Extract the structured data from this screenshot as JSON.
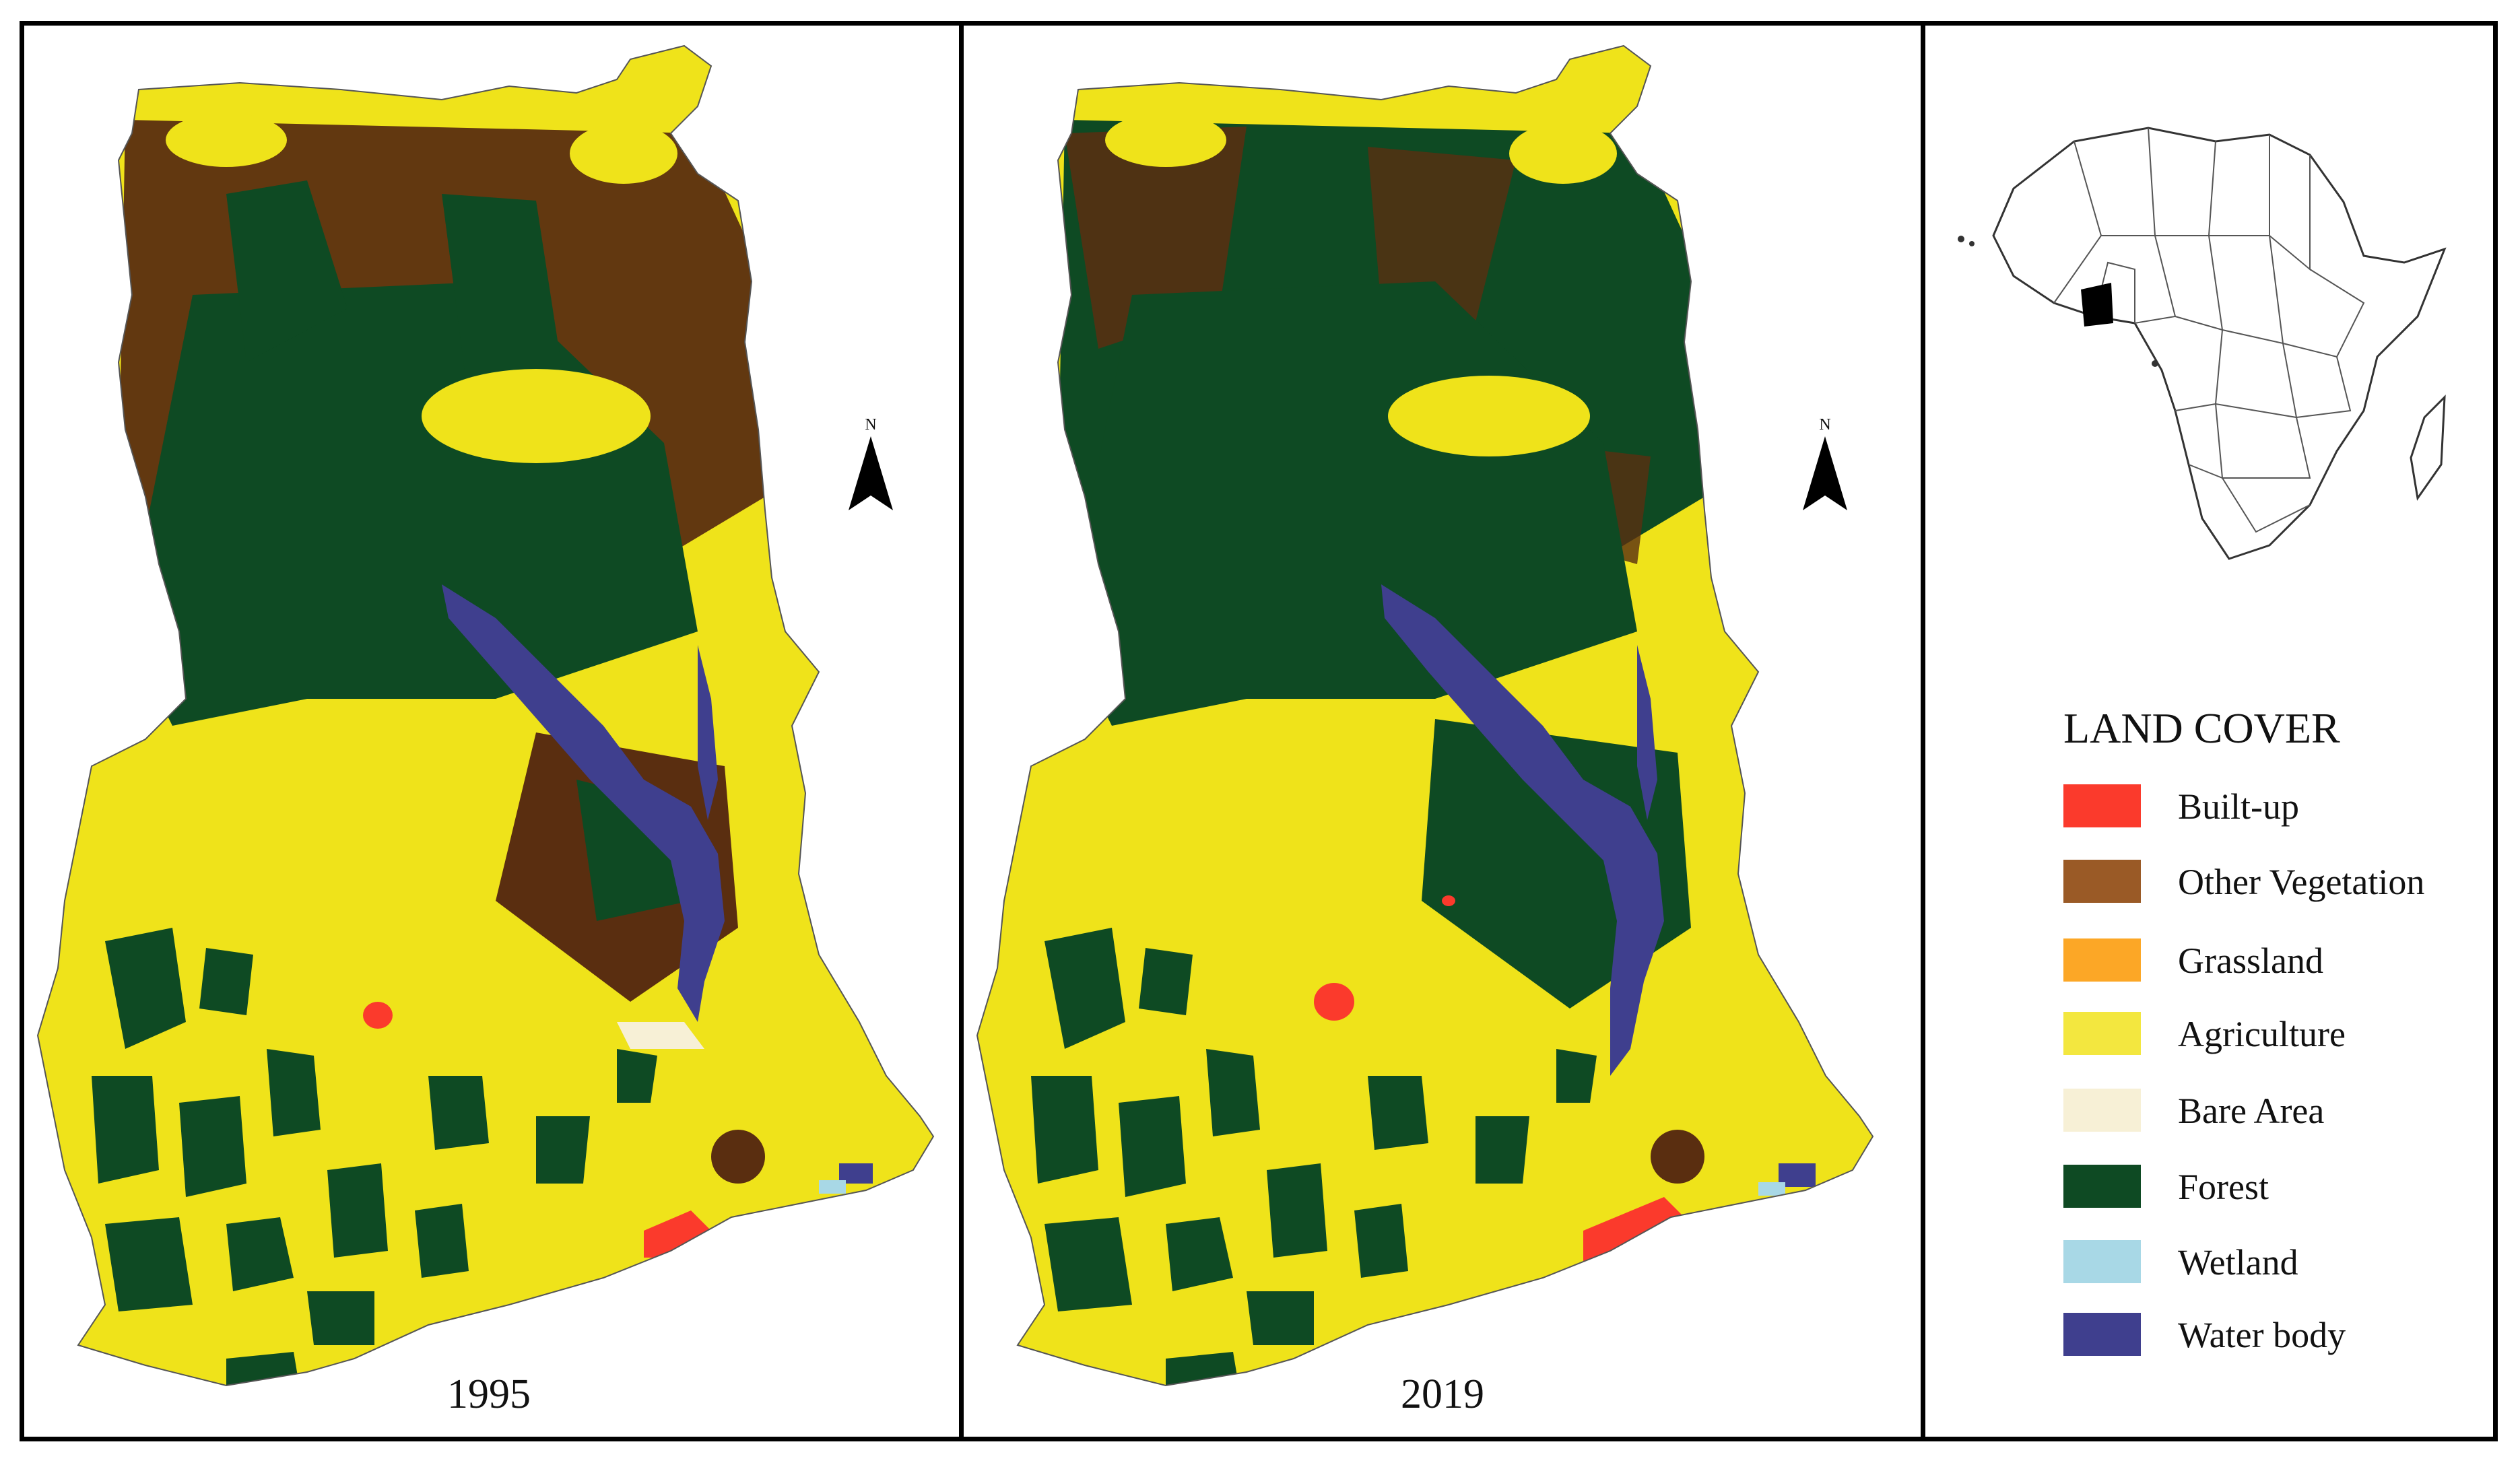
{
  "maps": [
    {
      "year": "1995"
    },
    {
      "year": "2019"
    }
  ],
  "north_arrow": {
    "letter": "N",
    "icon": "north-arrow-icon"
  },
  "inset": {
    "icon": "africa-locator-icon",
    "highlight_color": "#000000"
  },
  "legend": {
    "title": "LAND COVER",
    "items": [
      {
        "label": "Built-up",
        "color": "#fb3a2c"
      },
      {
        "label": "Other Vegetation",
        "color": "#9a5a26"
      },
      {
        "label": "Grassland",
        "color": "#fca726"
      },
      {
        "label": "Agriculture",
        "color": "#f3e73f"
      },
      {
        "label": "Bare Area",
        "color": "#f7f0d6"
      },
      {
        "label": "Forest",
        "color": "#0e4a23"
      },
      {
        "label": "Wetland",
        "color": "#a8d8e6"
      },
      {
        "label": "Water body",
        "color": "#3f3f8e"
      }
    ]
  }
}
